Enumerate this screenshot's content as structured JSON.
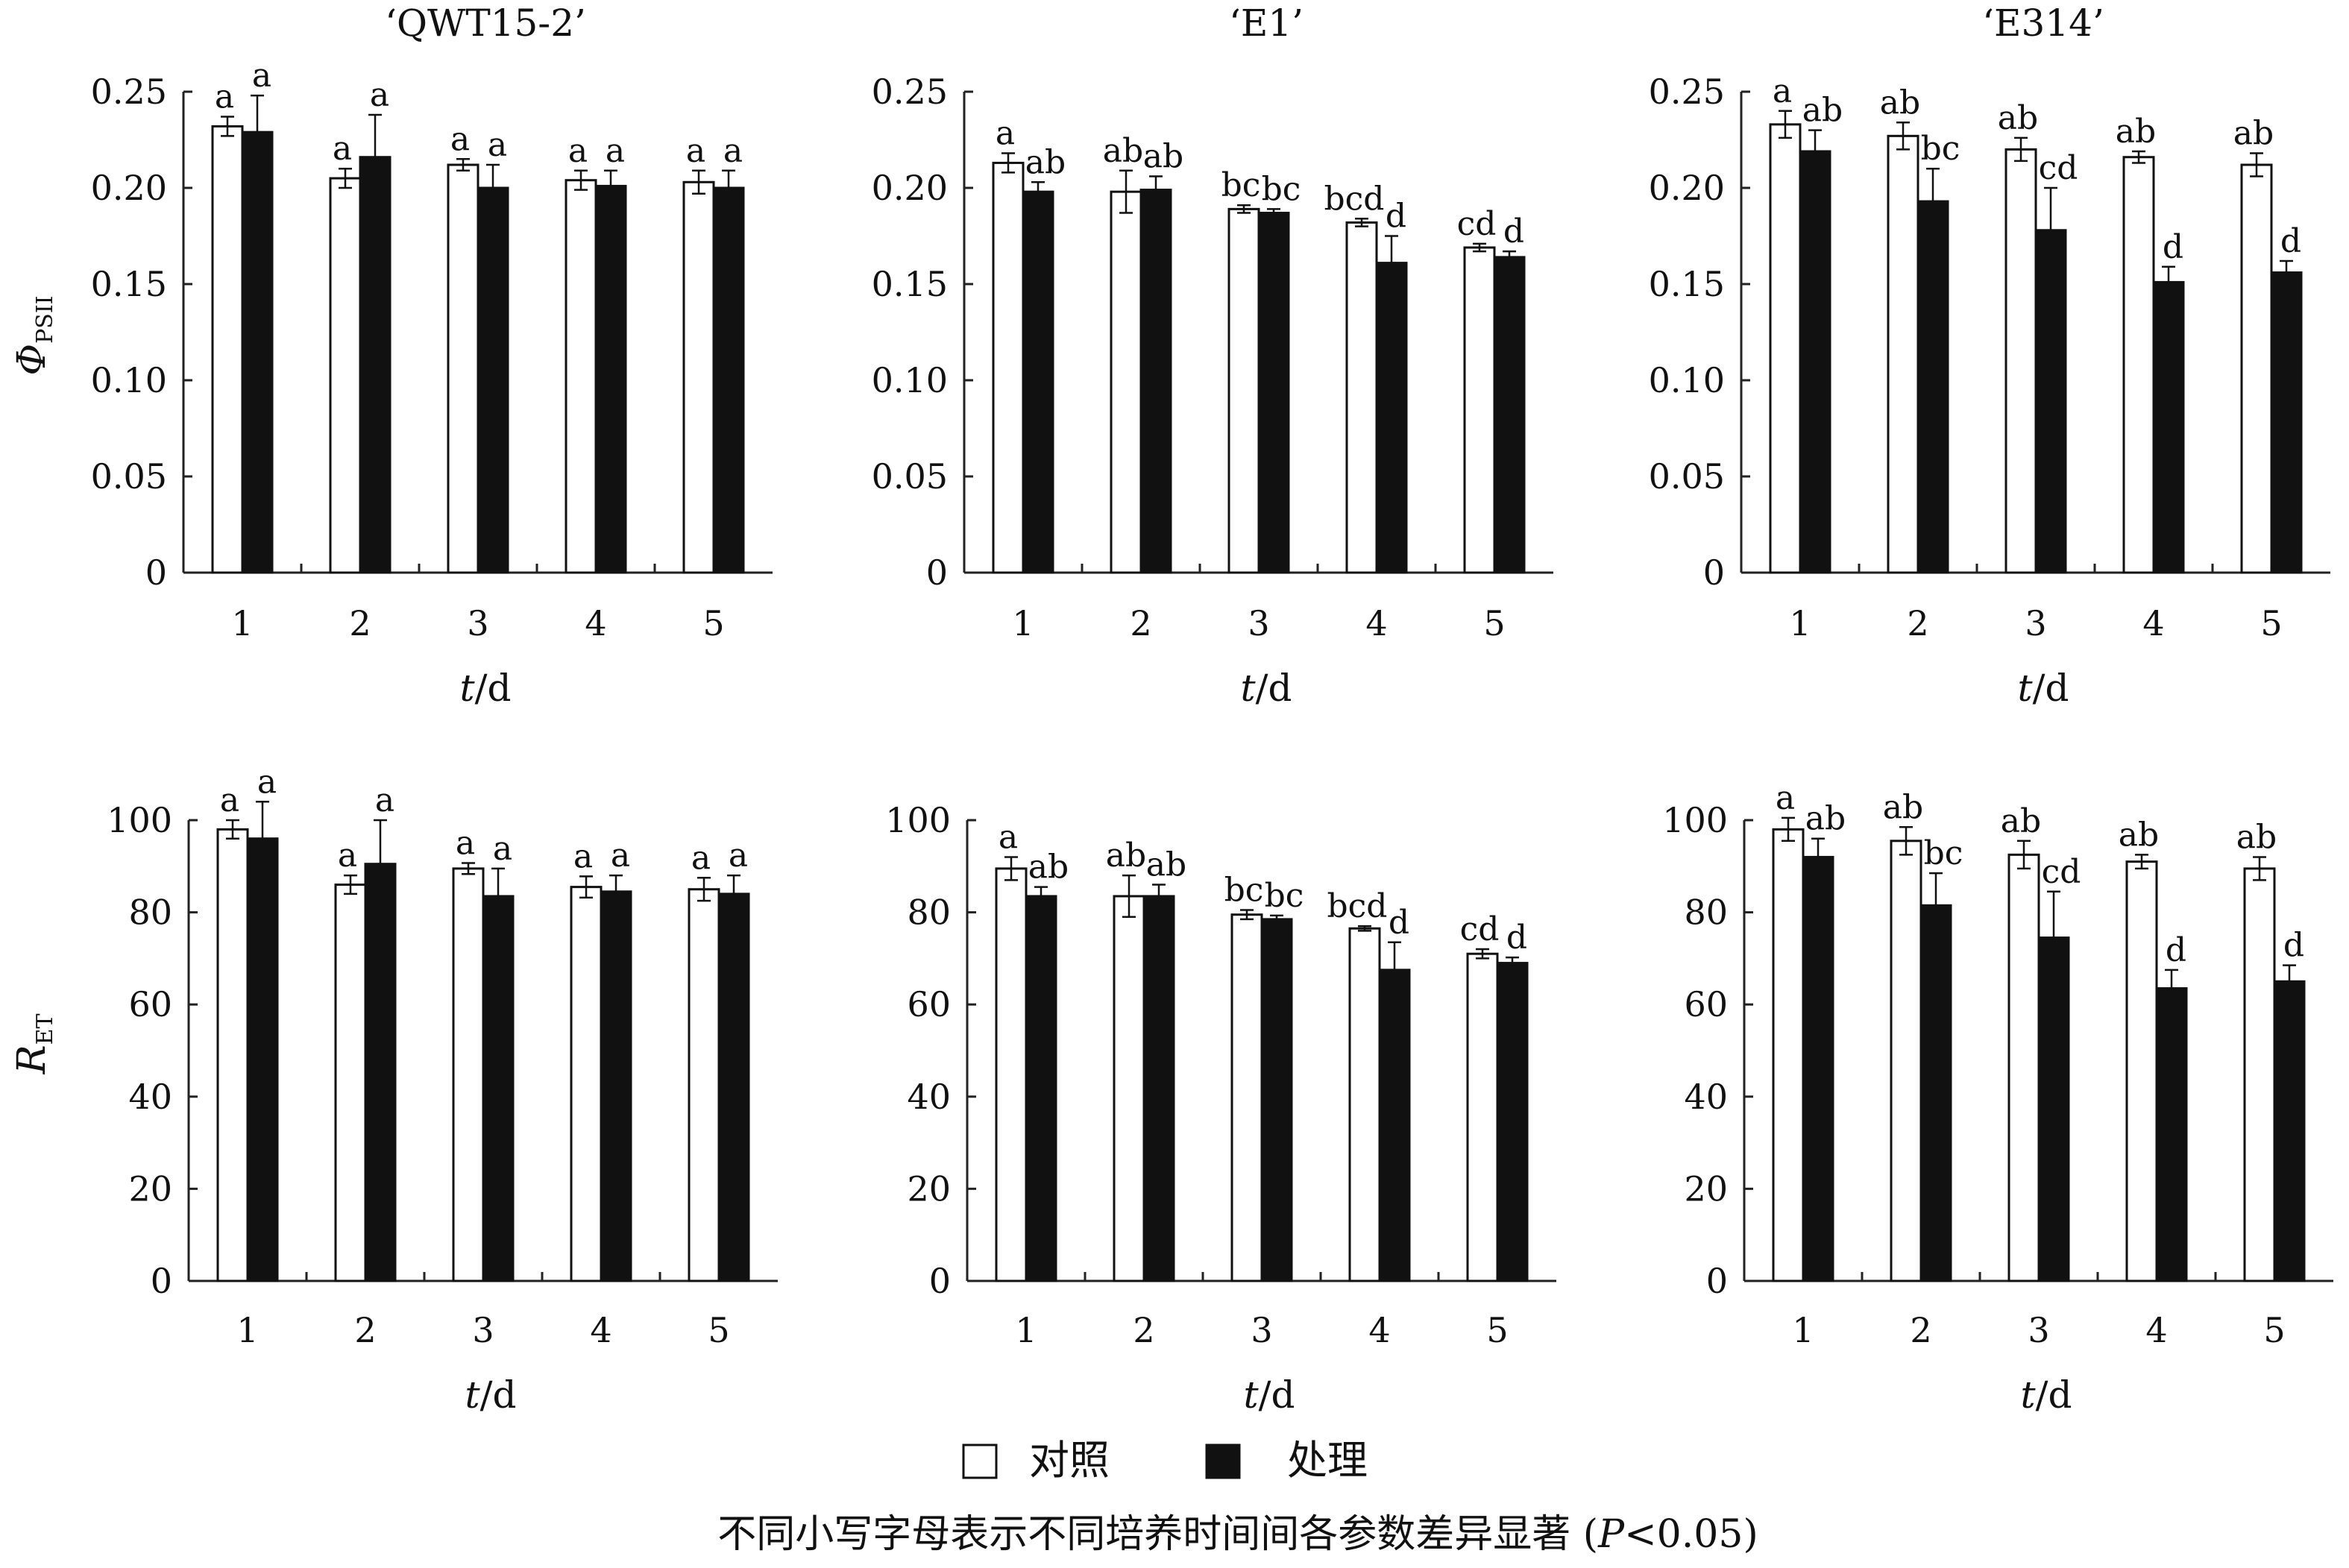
{
  "legend": {
    "control": "对照",
    "treatment": "处理"
  },
  "caption": "不同小写字母表示不同培养时间间各参数差异显著 (P<0.05)",
  "caption_parts": {
    "pre": "不同小写字母表示不同培养时间间各参数差异显著 (",
    "p": "P",
    "post": "<0.05)"
  },
  "colors": {
    "control": "#ffffff",
    "treatment": "#111111",
    "axis": "#222222"
  },
  "rows": [
    {
      "ylabel_main": "Φ",
      "ylabel_sub": "PSII",
      "yticks": [
        "0",
        "0.05",
        "0.10",
        "0.15",
        "0.20",
        "0.25"
      ],
      "ylim": [
        0,
        0.25
      ]
    },
    {
      "ylabel_main": "R",
      "ylabel_sub": "ET",
      "yticks": [
        "0",
        "20",
        "40",
        "60",
        "80",
        "100"
      ],
      "ylim": [
        0,
        100
      ]
    }
  ],
  "xlabel": {
    "var": "t",
    "unit": "/d"
  },
  "chart_data": [
    {
      "type": "bar",
      "title": "‘QWT15-2’",
      "ylabel": "ΦPSII",
      "xlabel": "t/d",
      "categories": [
        "1",
        "2",
        "3",
        "4",
        "5"
      ],
      "ylim": [
        0,
        0.25
      ],
      "series": [
        {
          "name": "对照",
          "values": [
            0.232,
            0.205,
            0.212,
            0.204,
            0.203
          ],
          "errors": [
            0.005,
            0.005,
            0.003,
            0.005,
            0.006
          ],
          "letters": [
            "a",
            "a",
            "a",
            "a",
            "a"
          ]
        },
        {
          "name": "处理",
          "values": [
            0.229,
            0.216,
            0.2,
            0.201,
            0.2
          ],
          "errors": [
            0.019,
            0.022,
            0.012,
            0.008,
            0.009
          ],
          "letters": [
            "a",
            "a",
            "a",
            "a",
            "a"
          ]
        }
      ]
    },
    {
      "type": "bar",
      "title": "‘E1’",
      "ylabel": "ΦPSII",
      "xlabel": "t/d",
      "categories": [
        "1",
        "2",
        "3",
        "4",
        "5"
      ],
      "ylim": [
        0,
        0.25
      ],
      "series": [
        {
          "name": "对照",
          "values": [
            0.213,
            0.198,
            0.189,
            0.182,
            0.169
          ],
          "errors": [
            0.005,
            0.011,
            0.002,
            0.002,
            0.002
          ],
          "letters": [
            "a",
            "ab",
            "bc",
            "bcd",
            "cd"
          ]
        },
        {
          "name": "处理",
          "values": [
            0.198,
            0.199,
            0.187,
            0.161,
            0.164
          ],
          "errors": [
            0.005,
            0.007,
            0.002,
            0.014,
            0.003
          ],
          "letters": [
            "ab",
            "ab",
            "bc",
            "d",
            "d"
          ]
        }
      ]
    },
    {
      "type": "bar",
      "title": "‘E314’",
      "ylabel": "ΦPSII",
      "xlabel": "t/d",
      "categories": [
        "1",
        "2",
        "3",
        "4",
        "5"
      ],
      "ylim": [
        0,
        0.25
      ],
      "series": [
        {
          "name": "对照",
          "values": [
            0.233,
            0.227,
            0.22,
            0.216,
            0.212
          ],
          "errors": [
            0.007,
            0.007,
            0.006,
            0.003,
            0.006
          ],
          "letters": [
            "a",
            "ab",
            "ab",
            "ab",
            "ab"
          ]
        },
        {
          "name": "处理",
          "values": [
            0.219,
            0.193,
            0.178,
            0.151,
            0.156
          ],
          "errors": [
            0.011,
            0.017,
            0.022,
            0.008,
            0.006
          ],
          "letters": [
            "ab",
            "bc",
            "cd",
            "d",
            "d"
          ]
        }
      ]
    },
    {
      "type": "bar",
      "title": "",
      "ylabel": "RET",
      "xlabel": "t/d",
      "categories": [
        "1",
        "2",
        "3",
        "4",
        "5"
      ],
      "ylim": [
        0,
        100
      ],
      "series": [
        {
          "name": "对照",
          "values": [
            98,
            86,
            89.5,
            85.5,
            85
          ],
          "errors": [
            2,
            2,
            1.2,
            2.3,
            2.5
          ],
          "letters": [
            "a",
            "a",
            "a",
            "a",
            "a"
          ]
        },
        {
          "name": "处理",
          "values": [
            96,
            90.5,
            83.5,
            84.5,
            84
          ],
          "errors": [
            8,
            9.5,
            6,
            3.5,
            4
          ],
          "letters": [
            "a",
            "a",
            "a",
            "a",
            "a"
          ]
        }
      ]
    },
    {
      "type": "bar",
      "title": "",
      "ylabel": "RET",
      "xlabel": "t/d",
      "categories": [
        "1",
        "2",
        "3",
        "4",
        "5"
      ],
      "ylim": [
        0,
        100
      ],
      "series": [
        {
          "name": "对照",
          "values": [
            89.5,
            83.5,
            79.5,
            76.5,
            71
          ],
          "errors": [
            2.5,
            4.5,
            1,
            0.5,
            1
          ],
          "letters": [
            "a",
            "ab",
            "bc",
            "bcd",
            "cd"
          ]
        },
        {
          "name": "处理",
          "values": [
            83.5,
            83.5,
            78.5,
            67.5,
            69
          ],
          "errors": [
            2,
            2.5,
            0.8,
            6,
            1.2
          ],
          "letters": [
            "ab",
            "ab",
            "bc",
            "d",
            "d"
          ]
        }
      ]
    },
    {
      "type": "bar",
      "title": "",
      "ylabel": "RET",
      "xlabel": "t/d",
      "categories": [
        "1",
        "2",
        "3",
        "4",
        "5"
      ],
      "ylim": [
        0,
        100
      ],
      "series": [
        {
          "name": "对照",
          "values": [
            98,
            95.5,
            92.5,
            91,
            89.5
          ],
          "errors": [
            2.5,
            3,
            3,
            1.5,
            2.5
          ],
          "letters": [
            "a",
            "ab",
            "ab",
            "ab",
            "ab"
          ]
        },
        {
          "name": "处理",
          "values": [
            92,
            81.5,
            74.5,
            63.5,
            65
          ],
          "errors": [
            4,
            7,
            10,
            4,
            3.5
          ],
          "letters": [
            "ab",
            "bc",
            "cd",
            "d",
            "d"
          ]
        }
      ]
    }
  ]
}
